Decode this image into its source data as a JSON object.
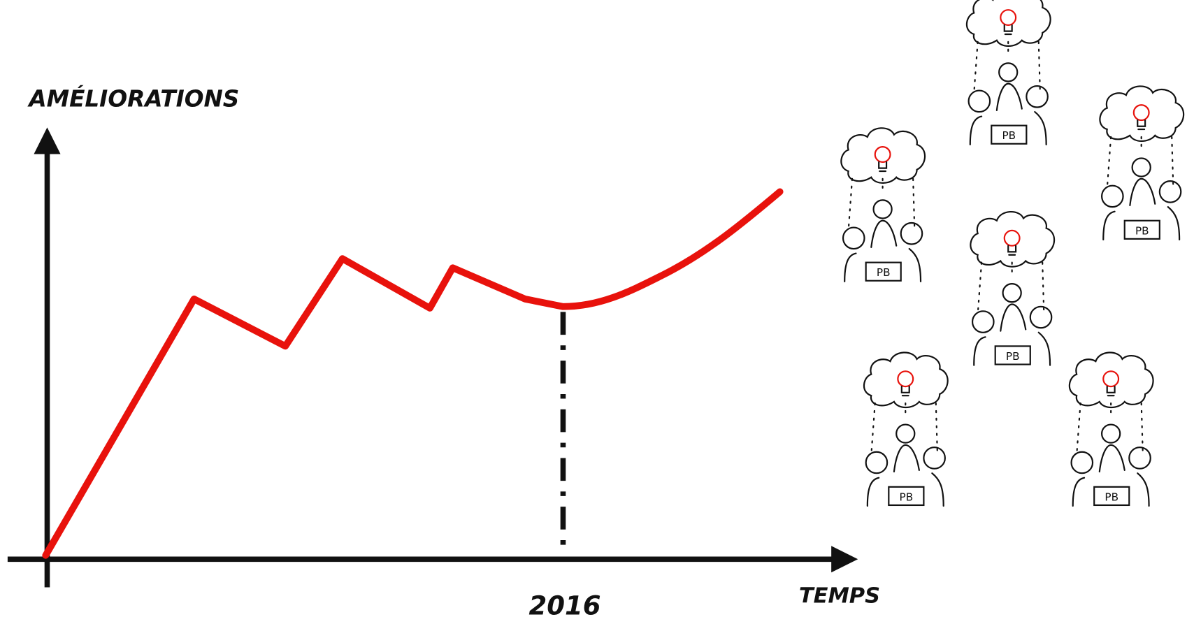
{
  "axes": {
    "y_label": "AMÉLIORATIONS",
    "x_label": "TEMPS"
  },
  "marker": {
    "label": "2016"
  },
  "groups": [
    {
      "label": "PB"
    },
    {
      "label": "PB"
    },
    {
      "label": "PB"
    },
    {
      "label": "PB"
    },
    {
      "label": "PB"
    },
    {
      "label": "PB"
    }
  ]
}
